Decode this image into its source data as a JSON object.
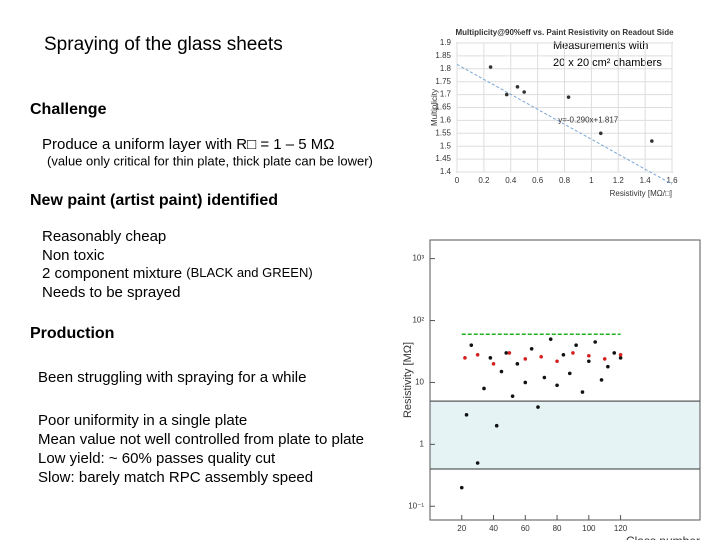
{
  "slide": {
    "title": "Spraying of the glass sheets",
    "note": [
      "Measurements with",
      "20 x 20 cm² chambers"
    ],
    "challenge": {
      "heading": "Challenge",
      "lines": [
        "Produce a uniform layer with R□ = 1 – 5 MΩ",
        "(value only critical for thin plate, thick plate can be lower)"
      ]
    },
    "paint": {
      "heading": "New paint (artist paint) identified",
      "lines": [
        "Reasonably cheap",
        "Non toxic",
        [
          "2 component mixture ",
          "(BLACK and GREEN)"
        ],
        "Needs to be sprayed"
      ]
    },
    "production": {
      "heading": "Production",
      "intro": "Been struggling with spraying for a while",
      "lines": [
        "Poor uniformity in a single plate",
        "Mean value not well controlled from plate to plate",
        "Low yield: ~ 60% passes quality cut",
        "Slow: barely match RPC assembly speed"
      ]
    }
  },
  "chart_data": [
    {
      "type": "scatter",
      "title": "Multiplicity@90%eff vs. Paint Resistivity on Readout Side",
      "x_label": "Resistivity [MΩ/□]",
      "y_label": "Multiplicity",
      "series": [
        {
          "color": "#333333",
          "x": [
            0.25,
            0.37,
            0.45,
            0.5,
            0.83,
            1.07,
            1.45
          ],
          "values": [
            1.807,
            1.7,
            1.73,
            1.71,
            1.69,
            1.55,
            1.52
          ]
        }
      ],
      "fit": {
        "slope": -0.29,
        "intercept": 1.817,
        "label": "y=-0.290x+1.817"
      },
      "xlim": [
        0,
        1.6
      ],
      "ylim": [
        1.4,
        1.9
      ],
      "xticks": [
        0,
        0.2,
        0.4,
        0.6,
        0.8,
        1,
        1.2,
        1.4,
        1.6
      ],
      "yticks": [
        1.4,
        1.45,
        1.5,
        1.55,
        1.6,
        1.65,
        1.7,
        1.75,
        1.8,
        1.85,
        1.9
      ],
      "grid": true
    },
    {
      "type": "scatter",
      "x_label": "Class number",
      "y_label": "Resistivity [MΩ]",
      "log_y": true,
      "band": [
        0.4,
        5
      ],
      "band_color": "#e6f3f5",
      "series": [
        {
          "color": "#111111",
          "mode": "markers",
          "x": [
            20,
            23,
            26,
            30,
            34,
            38,
            42,
            45,
            48,
            52,
            55,
            60,
            64,
            68,
            72,
            76,
            80,
            84,
            88,
            92,
            96,
            100,
            104,
            108,
            112,
            116,
            120
          ],
          "values": [
            0.2,
            3,
            40,
            0.5,
            8,
            25,
            2,
            15,
            30,
            6,
            20,
            10,
            35,
            4,
            12,
            50,
            9,
            28,
            14,
            40,
            7,
            22,
            45,
            11,
            18,
            30,
            25
          ]
        },
        {
          "color": "#d62020",
          "mode": "markers",
          "x": [
            22,
            30,
            40,
            50,
            60,
            70,
            80,
            90,
            100,
            110,
            120
          ],
          "values": [
            25,
            28,
            20,
            30,
            24,
            26,
            22,
            30,
            27,
            24,
            28
          ]
        },
        {
          "color": "#22b022",
          "mode": "line",
          "x": [
            20,
            120
          ],
          "values": [
            60,
            60
          ]
        }
      ],
      "xlim": [
        0,
        170
      ],
      "ylim": [
        0.06,
        2000
      ],
      "xticks": [
        20,
        40,
        60,
        80,
        100,
        120
      ],
      "yticks": [
        {
          "value": 0.1,
          "label": "10⁻¹"
        },
        1,
        10,
        {
          "value": 100,
          "label": "10²"
        },
        {
          "value": 1000,
          "label": "10³"
        }
      ]
    }
  ]
}
